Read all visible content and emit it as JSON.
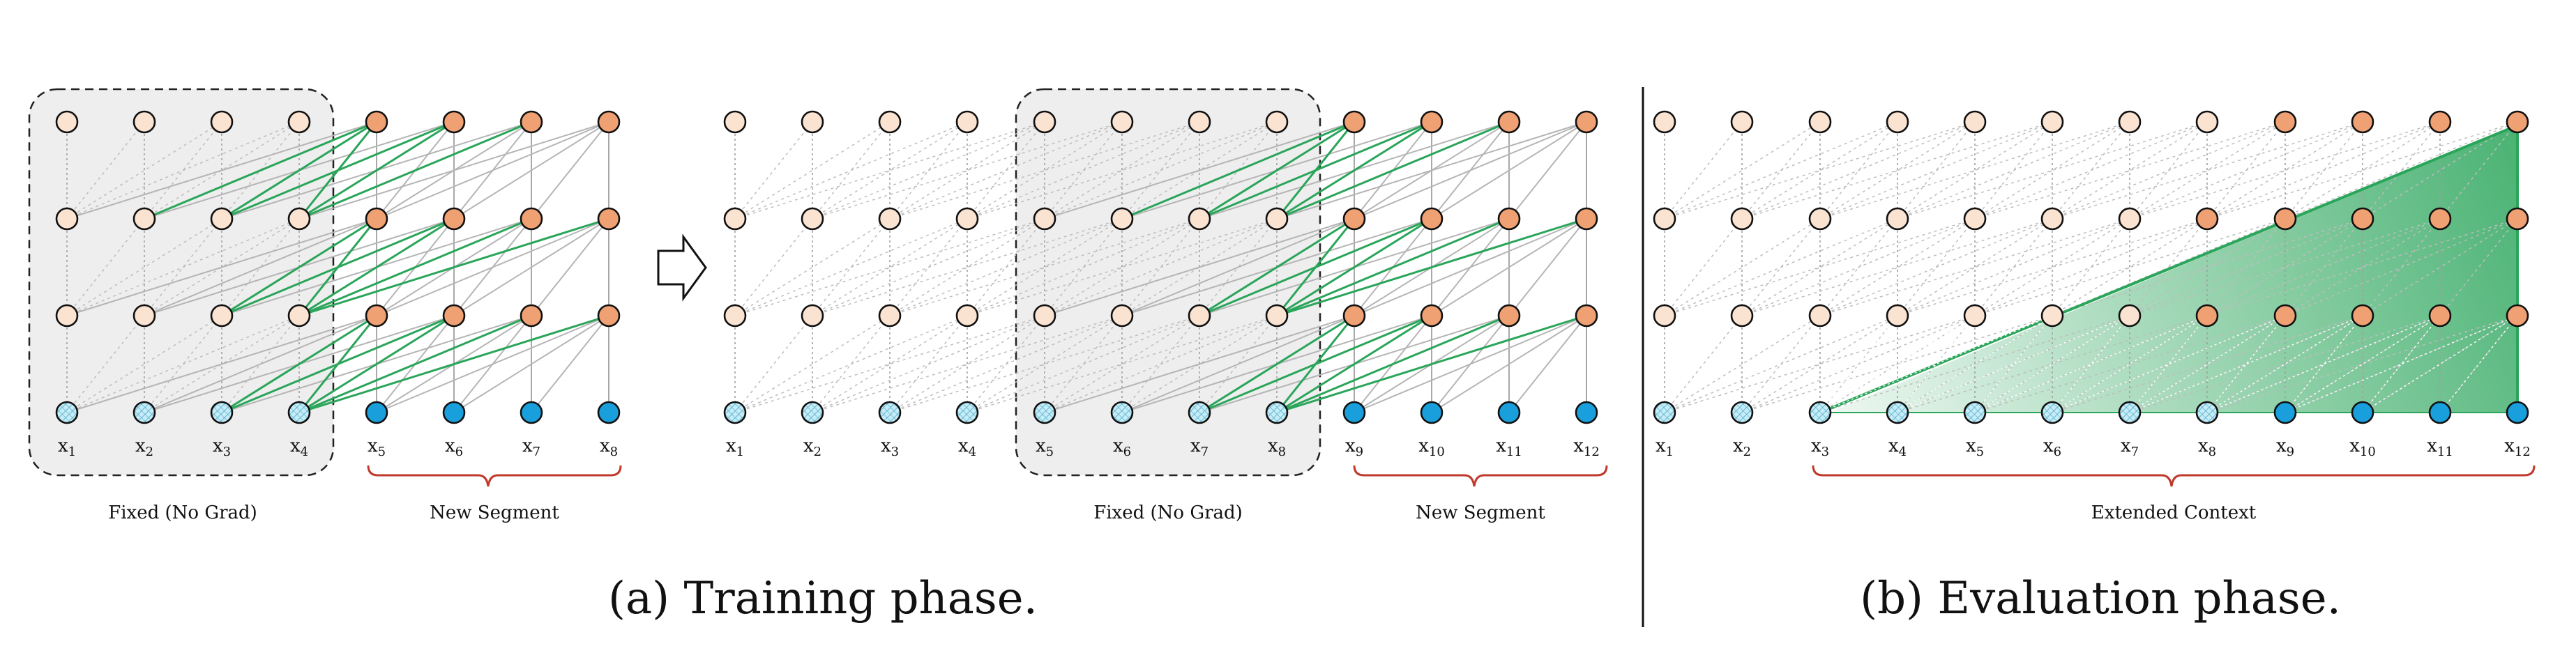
{
  "panel_a": {
    "left_labels": [
      "1",
      "2",
      "3",
      "4",
      "5",
      "6",
      "7",
      "8"
    ],
    "right_labels": [
      "1",
      "2",
      "3",
      "4",
      "5",
      "6",
      "7",
      "8",
      "9",
      "10",
      "11",
      "12"
    ],
    "left_fixed_caption": "Fixed (No Grad)",
    "left_new_caption": "New Segment",
    "right_fixed_caption": "Fixed (No Grad)",
    "right_new_caption": "New Segment",
    "title": "(a) Training phase."
  },
  "panel_b": {
    "labels": [
      "1",
      "2",
      "3",
      "4",
      "5",
      "6",
      "7",
      "8",
      "9",
      "10",
      "11",
      "12"
    ],
    "context_caption": "Extended Context",
    "title": "(b) Evaluation phase."
  },
  "colors": {
    "light_node": "#fbe3d2",
    "orange_node": "#f0a173",
    "blue_node": "#1a9fdd",
    "hatched_node": "#c6ecf5",
    "green": "#2aa55a",
    "red_brace": "#c0392b",
    "gray_edge": "#b9b9b9",
    "fixed_box": "#eeeeee"
  },
  "icons": {
    "transition_arrow": "right-arrow-icon"
  }
}
